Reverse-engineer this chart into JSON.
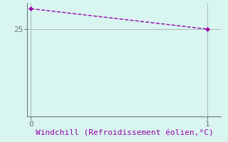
{
  "x": [
    0,
    1
  ],
  "y": [
    28.5,
    25.0
  ],
  "line_color": "#9900aa",
  "line_style": "--",
  "line_width": 1.0,
  "marker": "D",
  "marker_size": 3,
  "background_color": "#d8f5f0",
  "grid_color": "#aabcb8",
  "axis_color": "#707878",
  "xlabel": "Windchill (Refroidissement éolien,°C)",
  "xlabel_color": "#9900aa",
  "xlabel_fontsize": 8,
  "ytick_values": [
    25
  ],
  "xtick_values": [
    0,
    1
  ],
  "xlim": [
    -0.02,
    1.08
  ],
  "ylim": [
    10,
    29.5
  ],
  "tick_color": "#707878",
  "tick_fontsize": 8
}
